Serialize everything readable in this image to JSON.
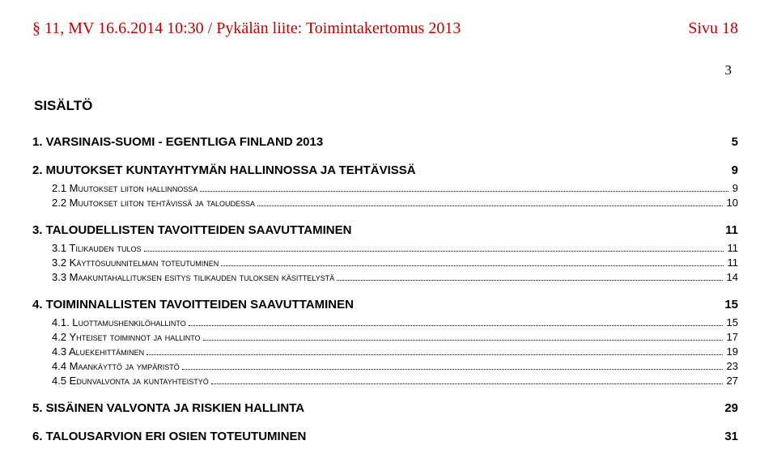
{
  "header": {
    "left": "§ 11, MV 16.6.2014 10:30 / Pykälän liite: Toimintakertomus 2013",
    "right": "Sivu 18"
  },
  "topPageNum": "3",
  "sisaltoTitle": "SISÄLTÖ",
  "toc": [
    {
      "level": 1,
      "label": "1. VARSINAIS-SUOMI - EGENTLIGA FINLAND 2013",
      "page": "5",
      "dots": false
    },
    {
      "level": 1,
      "label": "2. MUUTOKSET KUNTAYHTYMÄN HALLINNOSSA JA TEHTÄVISSÄ",
      "page": "9",
      "dots": false
    },
    {
      "level": 2,
      "label": "2.1 Muutokset liiton hallinnossa",
      "page": "9",
      "dots": true
    },
    {
      "level": 2,
      "label": "2.2 Muutokset liiton tehtävissä ja taloudessa",
      "page": "10",
      "dots": true
    },
    {
      "level": 1,
      "label": "3. TALOUDELLISTEN TAVOITTEIDEN SAAVUTTAMINEN",
      "page": "11",
      "dots": false
    },
    {
      "level": 2,
      "label": "3.1 Tilikauden tulos",
      "page": "11",
      "dots": true
    },
    {
      "level": 2,
      "label": "3.2 Käyttösuunnitelman toteutuminen",
      "page": "11",
      "dots": true
    },
    {
      "level": 2,
      "label": "3.3 Maakuntahallituksen esitys tilikauden tuloksen käsittelystä",
      "page": "14",
      "dots": true
    },
    {
      "level": 1,
      "label": "4. TOIMINNALLISTEN TAVOITTEIDEN SAAVUTTAMINEN",
      "page": "15",
      "dots": false
    },
    {
      "level": 2,
      "label": "4.1. Luottamushenkilöhallinto",
      "page": "15",
      "dots": true
    },
    {
      "level": 2,
      "label": "4.2 Yhteiset toiminnot ja hallinto",
      "page": "17",
      "dots": true
    },
    {
      "level": 2,
      "label": "4.3 Aluekehittäminen",
      "page": "19",
      "dots": true
    },
    {
      "level": 2,
      "label": "4.4 Maankäyttö ja ympäristö",
      "page": "23",
      "dots": true
    },
    {
      "level": 2,
      "label": "4.5 Edunvalvonta ja kuntayhteistyö",
      "page": "27",
      "dots": true
    },
    {
      "level": 1,
      "label": "5. SISÄINEN VALVONTA JA RISKIEN HALLINTA",
      "page": "29",
      "dots": false
    },
    {
      "level": 1,
      "label": "6. TALOUSARVION ERI OSIEN TOTEUTUMINEN",
      "page": "31",
      "dots": false
    }
  ]
}
